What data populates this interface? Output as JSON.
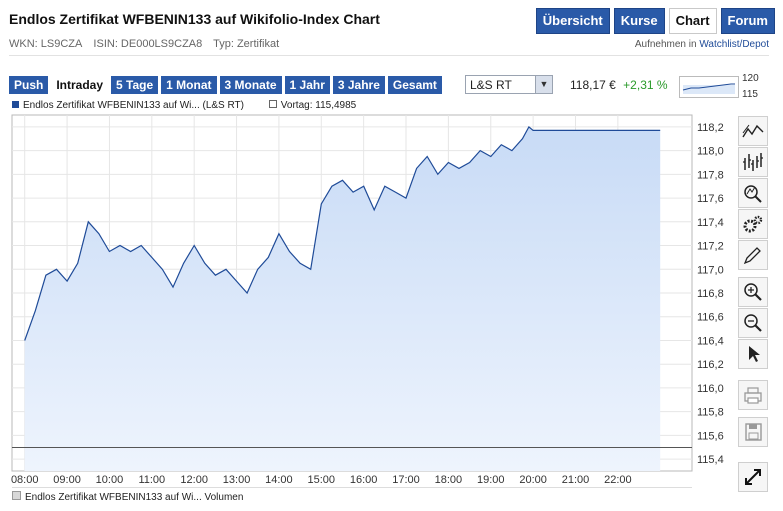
{
  "header": {
    "title": "Endlos Zertifikat WFBENIN133 auf Wikifolio-Index Chart",
    "nav": [
      {
        "label": "Übersicht",
        "active": false
      },
      {
        "label": "Kurse",
        "active": false
      },
      {
        "label": "Chart",
        "active": true
      },
      {
        "label": "Forum",
        "active": false
      }
    ],
    "wkn": "WKN: LS9CZA",
    "isin": "ISIN: DE000LS9CZA8",
    "typ": "Typ: Zertifikat",
    "aufnehmen_prefix": "Aufnehmen in",
    "aufnehmen_link": "Watchlist/Depot"
  },
  "toolbar": {
    "ranges": [
      {
        "label": "Push",
        "active": false
      },
      {
        "label": "Intraday",
        "active": true
      },
      {
        "label": "5 Tage",
        "active": false
      },
      {
        "label": "1 Monat",
        "active": false
      },
      {
        "label": "3 Monate",
        "active": false
      },
      {
        "label": "1 Jahr",
        "active": false
      },
      {
        "label": "3 Jahre",
        "active": false
      },
      {
        "label": "Gesamt",
        "active": false
      }
    ],
    "exchange_selected": "L&S RT",
    "price": "118,17 €",
    "change": "+2,31 %",
    "mini_hi": "120",
    "mini_lo": "115"
  },
  "legend": {
    "series1": "Endlos Zertifikat WFBENIN133 auf Wi... (L&S RT)",
    "series2": "Vortag: 115,4985"
  },
  "volume_legend": "Endlos Zertifikat WFBENIN133 auf Wi... Volumen",
  "colors": {
    "accent": "#2a5aa8",
    "line": "#1f4b98",
    "fill": "#d6e5fa",
    "positive": "#2a9a2a"
  },
  "tools": [
    "trend-line-icon",
    "candlestick-icon",
    "magnifier-icon",
    "settings-gears-icon",
    "pencil-icon",
    "zoom-in-icon",
    "zoom-out-icon",
    "pointer-icon",
    "print-icon",
    "save-icon",
    "fullscreen-icon"
  ],
  "chart_data": {
    "type": "area",
    "ylim": [
      115.3,
      118.3
    ],
    "yticks": [
      "118,2",
      "118,0",
      "117,8",
      "117,6",
      "117,4",
      "117,2",
      "117,0",
      "116,8",
      "116,6",
      "116,4",
      "116,2",
      "116,0",
      "115,8",
      "115,6",
      "115,4"
    ],
    "ytick_values": [
      118.2,
      118.0,
      117.8,
      117.6,
      117.4,
      117.2,
      117.0,
      116.8,
      116.6,
      116.4,
      116.2,
      116.0,
      115.8,
      115.6,
      115.4
    ],
    "xticks": [
      "08:00",
      "09:00",
      "10:00",
      "11:00",
      "12:00",
      "13:00",
      "14:00",
      "15:00",
      "16:00",
      "17:00",
      "18:00",
      "19:00",
      "20:00",
      "21:00",
      "22:00"
    ],
    "xlim": [
      7.7,
      23.75
    ],
    "reference_line": {
      "label": "Vortag",
      "value": 115.4985
    },
    "series": [
      {
        "name": "Endlos Zertifikat WFBENIN133 auf Wi... (L&S RT)",
        "x": [
          8.0,
          8.25,
          8.5,
          8.75,
          9.0,
          9.25,
          9.5,
          9.75,
          10.0,
          10.25,
          10.5,
          10.75,
          11.0,
          11.25,
          11.5,
          11.75,
          12.0,
          12.25,
          12.5,
          12.75,
          13.0,
          13.25,
          13.5,
          13.75,
          14.0,
          14.25,
          14.5,
          14.75,
          15.0,
          15.25,
          15.5,
          15.75,
          16.0,
          16.25,
          16.5,
          16.75,
          17.0,
          17.25,
          17.5,
          17.75,
          18.0,
          18.25,
          18.5,
          18.75,
          19.0,
          19.25,
          19.5,
          19.75,
          19.9,
          20.0,
          21.0,
          22.0,
          23.0
        ],
        "y": [
          116.4,
          116.65,
          116.95,
          117.0,
          116.9,
          117.05,
          117.4,
          117.3,
          117.15,
          117.2,
          117.15,
          117.2,
          117.1,
          117.0,
          116.85,
          117.05,
          117.2,
          117.05,
          116.95,
          117.0,
          116.9,
          116.8,
          117.0,
          117.1,
          117.3,
          117.15,
          117.05,
          117.0,
          117.55,
          117.7,
          117.75,
          117.65,
          117.7,
          117.5,
          117.7,
          117.65,
          117.6,
          117.85,
          117.95,
          117.8,
          117.9,
          117.85,
          117.9,
          118.0,
          117.95,
          118.05,
          118.0,
          118.1,
          118.2,
          118.17,
          118.17,
          118.17,
          118.17
        ]
      }
    ]
  }
}
